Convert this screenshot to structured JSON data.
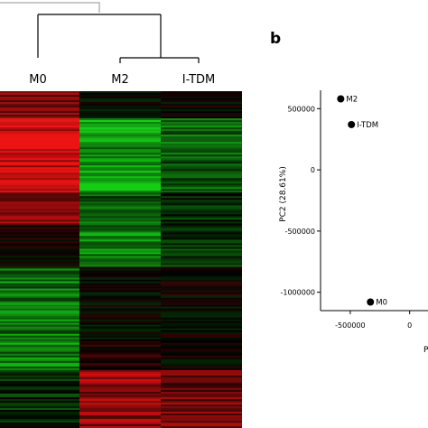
{
  "panels": {
    "a": {
      "columns": [
        "M0",
        "M2",
        "I-TDM"
      ],
      "colors": {
        "low": "#19c819",
        "mid": "#000000",
        "high": "#e61414"
      }
    },
    "b": {
      "label": "b",
      "xlabel": "P",
      "ylabel": "PC2 (28.61%)"
    }
  },
  "chart_data": [
    {
      "type": "heatmap",
      "columns": [
        "M0",
        "M2",
        "I-TDM"
      ],
      "dendrogram": "(M0,(M2,I-TDM))",
      "color_scale": [
        "green",
        "black",
        "red"
      ],
      "row_blocks": [
        {
          "rows": "top",
          "M0": 0.45,
          "M2": -0.05,
          "I-TDM": 0.0
        },
        {
          "rows": "upper",
          "M0": 0.95,
          "M2": -0.75,
          "I-TDM": -0.45
        },
        {
          "rows": "upper-middle",
          "M0": 0.5,
          "M2": -0.4,
          "I-TDM": -0.2
        },
        {
          "rows": "middle",
          "M0": 0.05,
          "M2": -0.6,
          "I-TDM": -0.25
        },
        {
          "rows": "lower-middle",
          "M0": -0.55,
          "M2": 0.0,
          "I-TDM": 0.0
        },
        {
          "rows": "lower",
          "M0": -0.6,
          "M2": 0.1,
          "I-TDM": 0.0
        },
        {
          "rows": "bottom",
          "M0": -0.2,
          "M2": 0.6,
          "I-TDM": 0.5
        }
      ]
    },
    {
      "type": "scatter",
      "title": "",
      "xlabel": "P",
      "ylabel": "PC2 (28.61%)",
      "xlim": [
        -750000,
        200000
      ],
      "ylim": [
        -1150000,
        650000
      ],
      "xticks": [
        -500000,
        0
      ],
      "yticks": [
        500000,
        0,
        -500000,
        -1000000
      ],
      "points": [
        {
          "label": "M2",
          "x": -580000,
          "y": 580000
        },
        {
          "label": "I-TDM",
          "x": -490000,
          "y": 370000
        },
        {
          "label": "M0",
          "x": -330000,
          "y": -1080000
        }
      ]
    }
  ]
}
